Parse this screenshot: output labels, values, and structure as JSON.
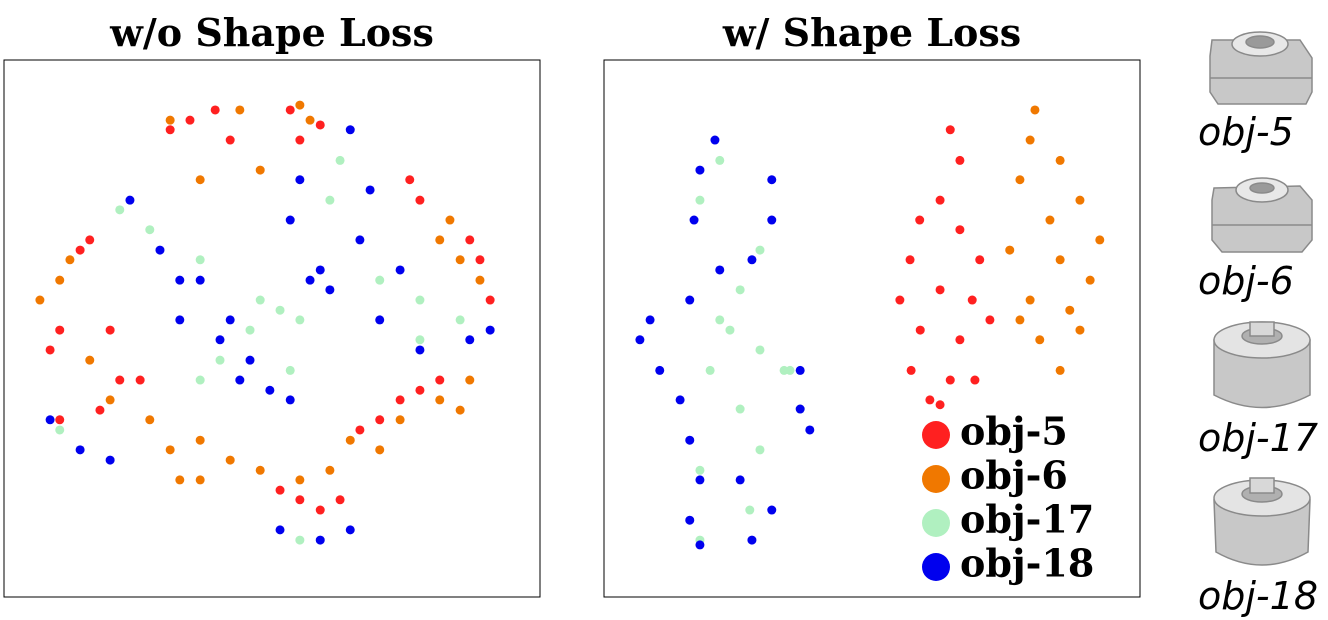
{
  "chart_data": [
    {
      "type": "scatter",
      "title": "w/o Shape Loss",
      "xlim": [
        0,
        100
      ],
      "ylim": [
        0,
        100
      ],
      "series": [
        {
          "color": "#ff2020",
          "x": [
            34.7,
            39.4,
            42.2,
            31.0,
            53.4,
            59.0,
            55.2,
            75.7,
            77.6,
            86.9,
            90.7,
            88.8,
            10.4,
            8.6,
            14.2,
            16.0,
            19.8,
            21.6,
            17.9,
            25.4,
            66.4,
            70.1,
            73.9,
            77.6,
            81.3,
            55.2,
            59.0,
            62.7,
            10.4,
            51.5
          ],
          "values": [
            88.8,
            90.7,
            85.1,
            87.0,
            90.7,
            87.9,
            85.1,
            77.7,
            73.9,
            66.5,
            55.3,
            62.8,
            49.7,
            46.0,
            64.6,
            66.5,
            49.7,
            40.4,
            34.8,
            40.4,
            31.1,
            33.0,
            36.7,
            38.5,
            40.4,
            18.1,
            16.2,
            18.1,
            33.0,
            19.9
          ]
        },
        {
          "color": "#f07800",
          "x": [
            31.0,
            44.0,
            55.2,
            57.1,
            36.6,
            47.8,
            83.2,
            85.1,
            88.8,
            81.3,
            6.7,
            10.4,
            12.3,
            16.0,
            19.8,
            27.2,
            31.0,
            36.6,
            42.2,
            47.8,
            55.2,
            60.8,
            64.6,
            73.9,
            81.3,
            85.1,
            86.9,
            36.6,
            70.1,
            32.8
          ],
          "values": [
            88.8,
            90.7,
            91.6,
            88.8,
            77.7,
            79.5,
            70.2,
            62.8,
            59.0,
            66.5,
            55.3,
            59.0,
            62.8,
            44.1,
            36.7,
            33.0,
            27.4,
            29.2,
            25.5,
            23.6,
            21.8,
            23.6,
            29.2,
            33.0,
            36.7,
            34.8,
            40.4,
            21.8,
            27.4,
            21.8
          ]
        },
        {
          "color": "#b0f0c0",
          "x": [
            51.5,
            47.8,
            55.2,
            45.9,
            36.6,
            27.2,
            21.6,
            60.8,
            62.7,
            70.1,
            77.6,
            85.1,
            40.3,
            36.6,
            53.4,
            10.4,
            55.2,
            77.6
          ],
          "values": [
            53.4,
            55.3,
            51.6,
            49.7,
            62.8,
            68.4,
            72.1,
            73.9,
            81.3,
            59.0,
            55.3,
            51.6,
            44.1,
            40.4,
            42.2,
            31.1,
            10.6,
            47.9
          ]
        },
        {
          "color": "#0000ee",
          "x": [
            59.0,
            57.1,
            60.8,
            64.6,
            55.2,
            53.4,
            68.3,
            66.4,
            23.5,
            29.1,
            36.6,
            32.8,
            40.3,
            45.9,
            53.4,
            49.6,
            44.0,
            70.1,
            77.6,
            86.9,
            90.7,
            8.6,
            14.2,
            19.8,
            51.5,
            59.0,
            64.6,
            73.9,
            32.8,
            42.2
          ],
          "values": [
            60.9,
            59.0,
            57.2,
            87.0,
            77.7,
            70.2,
            75.8,
            66.5,
            73.9,
            64.6,
            59.0,
            51.6,
            47.9,
            44.1,
            36.7,
            38.5,
            40.4,
            51.6,
            46.0,
            47.9,
            49.7,
            33.0,
            27.4,
            25.5,
            12.5,
            10.6,
            12.5,
            60.9,
            59.0,
            51.6
          ]
        }
      ]
    },
    {
      "type": "scatter",
      "title": "w/ Shape Loss",
      "xlim": [
        0,
        100
      ],
      "ylim": [
        0,
        100
      ],
      "legend": "lower right",
      "series": [
        {
          "name": "obj-5",
          "color": "#ff2020",
          "x": [
            64.6,
            66.4,
            62.7,
            58.9,
            66.4,
            70.1,
            57.1,
            62.7,
            55.2,
            68.7,
            59.0,
            66.4,
            72.0,
            57.3,
            64.6,
            60.8,
            62.7,
            69.2
          ],
          "values": [
            87.0,
            81.3,
            73.9,
            70.2,
            68.4,
            62.8,
            62.8,
            57.2,
            55.3,
            55.3,
            49.7,
            47.9,
            51.6,
            42.2,
            40.4,
            36.7,
            35.8,
            40.4
          ]
        },
        {
          "name": "obj-6",
          "color": "#f07800",
          "x": [
            80.4,
            79.5,
            85.1,
            77.6,
            88.8,
            83.2,
            92.5,
            75.7,
            85.1,
            90.7,
            79.5,
            86.9,
            81.3,
            88.8,
            85.1,
            77.6
          ],
          "values": [
            90.7,
            85.1,
            81.3,
            77.7,
            73.9,
            70.2,
            66.5,
            64.6,
            62.8,
            59.0,
            55.3,
            53.4,
            47.9,
            49.7,
            42.2,
            51.6
          ]
        },
        {
          "name": "obj-17",
          "color": "#b0f0c0",
          "x": [
            21.6,
            17.9,
            29.1,
            25.4,
            23.5,
            29.1,
            34.7,
            19.8,
            25.4,
            29.1,
            36.6,
            17.9,
            17.9,
            27.2,
            33.6,
            21.6
          ],
          "values": [
            81.3,
            73.9,
            64.6,
            57.2,
            49.7,
            46.0,
            42.2,
            42.2,
            35.0,
            27.4,
            35.0,
            23.6,
            10.6,
            16.2,
            42.2,
            51.6
          ]
        },
        {
          "name": "obj-18",
          "color": "#0000ee",
          "x": [
            20.7,
            17.9,
            16.8,
            31.3,
            31.3,
            27.6,
            21.6,
            16.0,
            8.6,
            6.7,
            10.4,
            14.2,
            16.0,
            17.9,
            16.0,
            17.9,
            36.6,
            36.6,
            38.4,
            25.4,
            27.6,
            31.3
          ],
          "values": [
            85.1,
            79.5,
            70.2,
            77.7,
            70.2,
            62.8,
            60.9,
            55.3,
            51.6,
            47.9,
            42.2,
            36.7,
            29.2,
            21.8,
            14.3,
            9.7,
            42.2,
            35.0,
            31.1,
            21.8,
            10.6,
            16.2
          ]
        }
      ]
    }
  ],
  "objects": [
    "obj-5",
    "obj-6",
    "obj-17",
    "obj-18"
  ]
}
